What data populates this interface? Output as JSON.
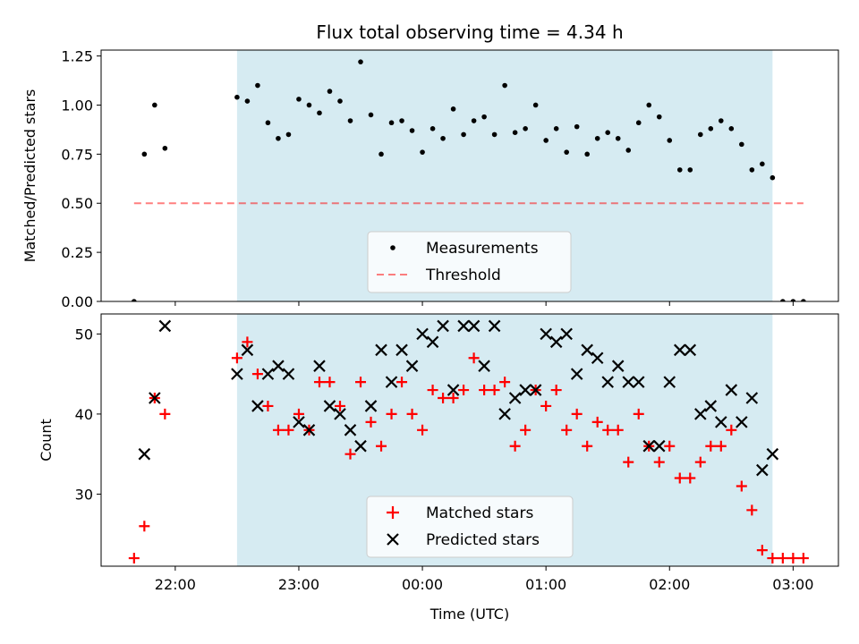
{
  "title": "Flux total observing time = 4.34 h",
  "colors": {
    "span": "#add8e6",
    "measurements": "#000000",
    "threshold": "#ff0000",
    "matched": "#ff0000",
    "predicted": "#000000"
  },
  "chart_data": [
    {
      "type": "scatter",
      "ylabel": "Matched/Predicted stars",
      "ylim": [
        0,
        1.28
      ],
      "yticks": [
        "0.00",
        "0.25",
        "0.50",
        "0.75",
        "1.00",
        "1.25"
      ],
      "ytick_values": [
        0,
        0.25,
        0.5,
        0.75,
        1.0,
        1.25
      ],
      "xlim": [
        "21:24",
        "03:22"
      ],
      "shaded_span": [
        "22:30",
        "02:50"
      ],
      "legend": [
        "Measurements",
        "Threshold"
      ],
      "legend_position": "lower center",
      "threshold": {
        "value": 0.5,
        "x_range": [
          "21:40",
          "03:05"
        ],
        "style": "dashed"
      },
      "series": [
        {
          "name": "Measurements",
          "x": [
            "21:40",
            "21:45",
            "21:50",
            "21:55",
            "22:30",
            "22:35",
            "22:40",
            "22:45",
            "22:50",
            "22:55",
            "23:00",
            "23:05",
            "23:10",
            "23:15",
            "23:20",
            "23:25",
            "23:30",
            "23:35",
            "23:40",
            "23:45",
            "23:50",
            "23:55",
            "00:00",
            "00:05",
            "00:10",
            "00:15",
            "00:20",
            "00:25",
            "00:30",
            "00:35",
            "00:40",
            "00:45",
            "00:50",
            "00:55",
            "01:00",
            "01:05",
            "01:10",
            "01:15",
            "01:20",
            "01:25",
            "01:30",
            "01:35",
            "01:40",
            "01:45",
            "01:50",
            "01:55",
            "02:00",
            "02:05",
            "02:10",
            "02:15",
            "02:20",
            "02:25",
            "02:30",
            "02:35",
            "02:40",
            "02:45",
            "02:50",
            "02:55",
            "03:00",
            "03:05"
          ],
          "values": [
            0.0,
            0.75,
            1.0,
            0.78,
            1.04,
            1.02,
            1.1,
            0.91,
            0.83,
            0.85,
            1.03,
            1.0,
            0.96,
            1.07,
            1.02,
            0.92,
            1.22,
            0.95,
            0.75,
            0.91,
            0.92,
            0.87,
            0.76,
            0.88,
            0.83,
            0.98,
            0.85,
            0.92,
            0.94,
            0.85,
            1.1,
            0.86,
            0.88,
            1.0,
            0.82,
            0.88,
            0.76,
            0.89,
            0.75,
            0.83,
            0.86,
            0.83,
            0.77,
            0.91,
            1.0,
            0.94,
            0.82,
            0.67,
            0.67,
            0.85,
            0.88,
            0.92,
            0.88,
            0.8,
            0.67,
            0.7,
            0.63,
            0.0,
            0.0,
            0.0
          ]
        }
      ]
    },
    {
      "type": "scatter",
      "ylabel": "Count",
      "xlabel": "Time (UTC)",
      "ylim": [
        21,
        52.5
      ],
      "yticks": [
        "30",
        "40",
        "50"
      ],
      "ytick_values": [
        30,
        40,
        50
      ],
      "xticks": [
        "22:00",
        "23:00",
        "00:00",
        "01:00",
        "02:00",
        "03:00"
      ],
      "xlim": [
        "21:24",
        "03:22"
      ],
      "shaded_span": [
        "22:30",
        "02:50"
      ],
      "legend": [
        "Matched stars",
        "Predicted stars"
      ],
      "legend_position": "lower center",
      "series": [
        {
          "name": "Matched stars",
          "x": [
            "21:40",
            "21:45",
            "21:50",
            "21:55",
            "22:30",
            "22:35",
            "22:40",
            "22:45",
            "22:50",
            "22:55",
            "23:00",
            "23:05",
            "23:10",
            "23:15",
            "23:20",
            "23:25",
            "23:30",
            "23:35",
            "23:40",
            "23:45",
            "23:50",
            "23:55",
            "00:00",
            "00:05",
            "00:10",
            "00:15",
            "00:20",
            "00:25",
            "00:30",
            "00:35",
            "00:40",
            "00:45",
            "00:50",
            "00:55",
            "01:00",
            "01:05",
            "01:10",
            "01:15",
            "01:20",
            "01:25",
            "01:30",
            "01:35",
            "01:40",
            "01:45",
            "01:50",
            "01:55",
            "02:00",
            "02:05",
            "02:10",
            "02:15",
            "02:20",
            "02:25",
            "02:30",
            "02:35",
            "02:40",
            "02:45",
            "02:50",
            "02:55",
            "03:00",
            "03:05"
          ],
          "values": [
            22,
            26,
            42,
            40,
            47,
            49,
            45,
            41,
            38,
            38,
            40,
            38,
            44,
            44,
            41,
            35,
            44,
            39,
            36,
            40,
            44,
            40,
            38,
            43,
            42,
            42,
            43,
            47,
            43,
            43,
            44,
            36,
            38,
            43,
            41,
            43,
            38,
            40,
            36,
            39,
            38,
            38,
            34,
            40,
            36,
            34,
            36,
            32,
            32,
            34,
            36,
            36,
            38,
            31,
            28,
            23,
            22,
            22,
            22,
            22
          ]
        },
        {
          "name": "Predicted stars",
          "x": [
            "21:45",
            "21:50",
            "21:55",
            "22:30",
            "22:35",
            "22:40",
            "22:45",
            "22:50",
            "22:55",
            "23:00",
            "23:05",
            "23:10",
            "23:15",
            "23:20",
            "23:25",
            "23:30",
            "23:35",
            "23:40",
            "23:45",
            "23:50",
            "23:55",
            "00:00",
            "00:05",
            "00:10",
            "00:15",
            "00:20",
            "00:25",
            "00:30",
            "00:35",
            "00:40",
            "00:45",
            "00:50",
            "00:55",
            "01:00",
            "01:05",
            "01:10",
            "01:15",
            "01:20",
            "01:25",
            "01:30",
            "01:35",
            "01:40",
            "01:45",
            "01:50",
            "01:55",
            "02:00",
            "02:05",
            "02:10",
            "02:15",
            "02:20",
            "02:25",
            "02:30",
            "02:35",
            "02:40",
            "02:45",
            "02:50"
          ],
          "values": [
            35,
            42,
            51,
            45,
            48,
            41,
            45,
            46,
            45,
            39,
            38,
            46,
            41,
            40,
            38,
            36,
            41,
            48,
            44,
            48,
            46,
            50,
            49,
            51,
            43,
            51,
            51,
            46,
            51,
            40,
            42,
            43,
            43,
            50,
            49,
            50,
            45,
            48,
            47,
            44,
            46,
            44,
            44,
            36,
            36,
            44,
            48,
            48,
            40,
            41,
            39,
            43,
            39,
            42,
            33,
            35
          ]
        }
      ]
    }
  ]
}
